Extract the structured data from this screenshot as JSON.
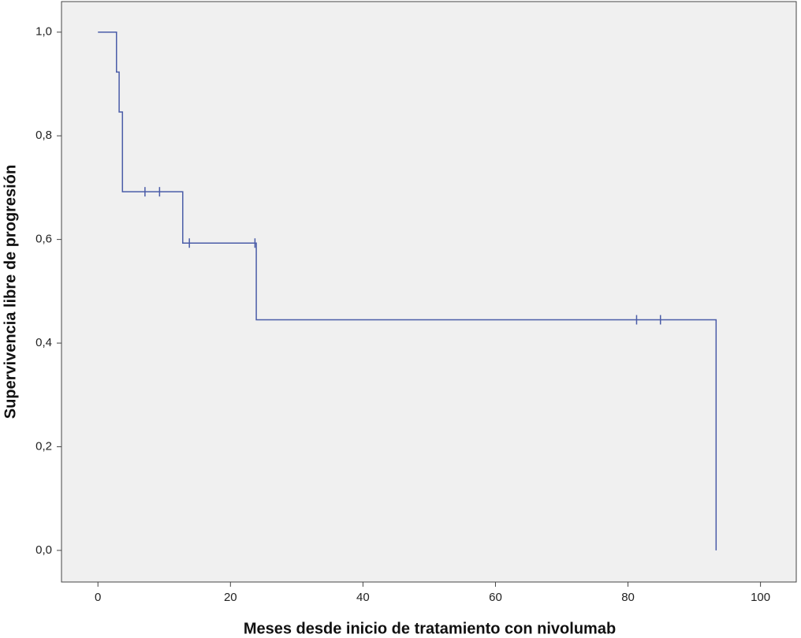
{
  "chart_data": {
    "type": "step",
    "x_label": "Meses desde inicio de tratamiento con nivolumab",
    "y_label": "Supervivencia libre de progresión",
    "x": [
      0,
      2.8,
      3.2,
      3.7,
      3.7,
      12.8,
      23.9,
      93.3
    ],
    "values": [
      1.0,
      0.923,
      0.846,
      0.769,
      0.692,
      0.593,
      0.445,
      0.0
    ],
    "censored": {
      "x": [
        7.1,
        9.3,
        13.8,
        23.7,
        81.3,
        84.9
      ],
      "values": [
        0.692,
        0.692,
        0.593,
        0.593,
        0.445,
        0.445
      ]
    },
    "color": "#4a5ca8",
    "background": "#f0f0f0",
    "xlim": [
      -5.5,
      105.4
    ],
    "ylim": [
      -0.061,
      1.059
    ],
    "xticks": [
      0,
      20,
      40,
      60,
      80,
      100
    ],
    "yticks": [
      {
        "value": 0,
        "label": "0,0"
      },
      {
        "value": 0.2,
        "label": "0,2"
      },
      {
        "value": 0.4,
        "label": "0,4"
      },
      {
        "value": 0.6,
        "label": "0,6"
      },
      {
        "value": 0.8,
        "label": "0,8"
      },
      {
        "value": 1.0,
        "label": "1,0"
      }
    ]
  }
}
